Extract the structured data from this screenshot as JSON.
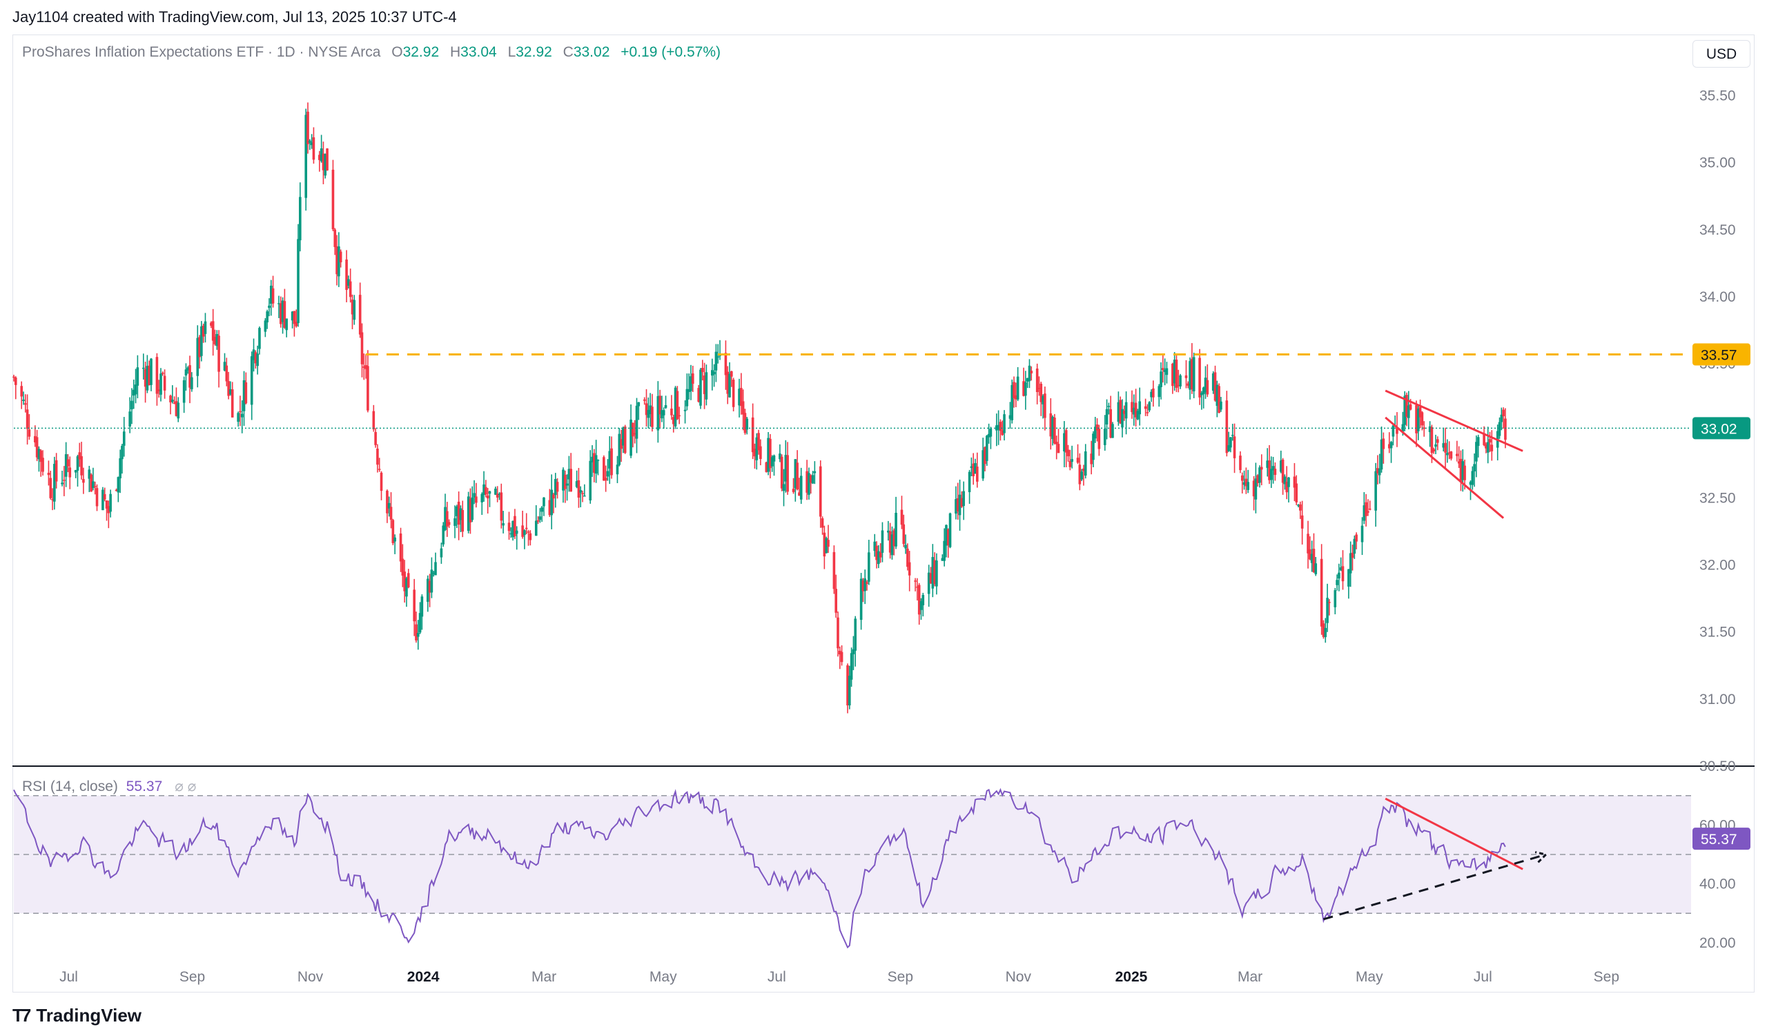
{
  "header": {
    "attribution": "Jay1104 created with TradingView.com, Jul 13, 2025 10:37 UTC-4"
  },
  "legend": {
    "symbol_desc": "ProShares Inflation Expectations ETF · 1D · NYSE Arca",
    "o_label": "O",
    "o_value": "32.92",
    "h_label": "H",
    "h_value": "33.04",
    "l_label": "L",
    "l_value": "32.92",
    "c_label": "C",
    "c_value": "33.02",
    "change": "+0.19 (+0.57%)"
  },
  "currency_button": "USD",
  "rsi_legend": {
    "label": "RSI (14, close)",
    "value": "55.37",
    "icons": "⌀ ⌀"
  },
  "footer": {
    "brand": "TradingView",
    "brand_icon": "tradingview-logo-icon"
  },
  "colors": {
    "up": "#089981",
    "down": "#f23645",
    "resistance": "#f9b400",
    "rsi_line": "#7e57c2",
    "rsi_band": "#ede7f6",
    "trendline_red": "#f23645",
    "divergence": "#131722"
  },
  "chart_data": [
    {
      "type": "candlestick",
      "name": "price",
      "ylim": [
        30.5,
        35.75
      ],
      "y_ticks": [
        "35.50",
        "35.00",
        "34.50",
        "34.00",
        "33.50",
        "33.00",
        "32.50",
        "32.00",
        "31.50",
        "31.00",
        "30.50"
      ],
      "x_ticks": [
        "Jul",
        "Sep",
        "Nov",
        "2024",
        "Mar",
        "May",
        "Jul",
        "Sep",
        "Nov",
        "2025",
        "Mar",
        "May",
        "Jul",
        "Sep"
      ],
      "x_range": [
        "2023-06-01",
        "2025-10-15"
      ],
      "price_path": [
        [
          "2023-06-01",
          33.4
        ],
        [
          "2023-06-20",
          32.6
        ],
        [
          "2023-07-05",
          32.8
        ],
        [
          "2023-07-20",
          32.4
        ],
        [
          "2023-08-05",
          33.5
        ],
        [
          "2023-08-25",
          33.2
        ],
        [
          "2023-09-10",
          33.8
        ],
        [
          "2023-09-25",
          33.1
        ],
        [
          "2023-10-10",
          34.0
        ],
        [
          "2023-10-25",
          33.8
        ],
        [
          "2023-10-28",
          35.3
        ],
        [
          "2023-11-10",
          35.0
        ],
        [
          "2023-11-15",
          34.3
        ],
        [
          "2023-11-25",
          33.8
        ],
        [
          "2023-12-10",
          32.5
        ],
        [
          "2023-12-25",
          31.5
        ],
        [
          "2024-01-10",
          32.3
        ],
        [
          "2024-02-01",
          32.5
        ],
        [
          "2024-02-20",
          32.2
        ],
        [
          "2024-03-10",
          32.6
        ],
        [
          "2024-04-01",
          32.7
        ],
        [
          "2024-04-20",
          33.1
        ],
        [
          "2024-05-10",
          33.2
        ],
        [
          "2024-06-01",
          33.5
        ],
        [
          "2024-06-15",
          33.0
        ],
        [
          "2024-07-01",
          32.7
        ],
        [
          "2024-07-20",
          32.6
        ],
        [
          "2024-08-05",
          31.0
        ],
        [
          "2024-08-12",
          31.9
        ],
        [
          "2024-09-01",
          32.3
        ],
        [
          "2024-09-12",
          31.7
        ],
        [
          "2024-10-01",
          32.4
        ],
        [
          "2024-10-20",
          33.0
        ],
        [
          "2024-11-05",
          33.4
        ],
        [
          "2024-11-20",
          33.0
        ],
        [
          "2024-12-01",
          32.7
        ],
        [
          "2024-12-20",
          33.1
        ],
        [
          "2025-01-10",
          33.3
        ],
        [
          "2025-01-25",
          33.5
        ],
        [
          "2025-02-10",
          33.3
        ],
        [
          "2025-02-25",
          32.6
        ],
        [
          "2025-03-15",
          32.7
        ],
        [
          "2025-03-28",
          32.4
        ],
        [
          "2025-04-08",
          31.6
        ],
        [
          "2025-04-25",
          32.2
        ],
        [
          "2025-05-05",
          32.7
        ],
        [
          "2025-05-20",
          33.2
        ],
        [
          "2025-06-05",
          32.9
        ],
        [
          "2025-06-20",
          32.7
        ],
        [
          "2025-07-01",
          32.9
        ],
        [
          "2025-07-11",
          33.02
        ]
      ],
      "last_close": 33.02,
      "annotations": {
        "resistance_level": 33.57,
        "resistance_label": "33.57",
        "last_price_label": "33.02",
        "falling_wedge": {
          "upper": [
            [
              "2025-05-10",
              33.3
            ],
            [
              "2025-07-20",
              32.85
            ]
          ],
          "lower": [
            [
              "2025-05-10",
              33.1
            ],
            [
              "2025-07-10",
              32.35
            ]
          ]
        }
      }
    },
    {
      "type": "line",
      "name": "RSI (14, close)",
      "ylim": [
        12,
        73
      ],
      "y_ticks": [
        "60.00",
        "40.00",
        "20.00"
      ],
      "bands": {
        "upper": 70,
        "middle": 50,
        "lower": 30
      },
      "last_value": 55.37,
      "last_value_label": "55.37",
      "rsi_path": [
        [
          "2023-06-01",
          70
        ],
        [
          "2023-06-20",
          45
        ],
        [
          "2023-07-05",
          55
        ],
        [
          "2023-07-20",
          42
        ],
        [
          "2023-08-05",
          60
        ],
        [
          "2023-08-25",
          50
        ],
        [
          "2023-09-10",
          62
        ],
        [
          "2023-09-25",
          44
        ],
        [
          "2023-10-10",
          63
        ],
        [
          "2023-10-25",
          52
        ],
        [
          "2023-10-28",
          72
        ],
        [
          "2023-11-10",
          60
        ],
        [
          "2023-11-15",
          45
        ],
        [
          "2023-11-25",
          40
        ],
        [
          "2023-12-10",
          30
        ],
        [
          "2023-12-25",
          22
        ],
        [
          "2024-01-10",
          56
        ],
        [
          "2024-02-01",
          58
        ],
        [
          "2024-02-20",
          45
        ],
        [
          "2024-03-10",
          60
        ],
        [
          "2024-04-01",
          56
        ],
        [
          "2024-04-20",
          65
        ],
        [
          "2024-05-10",
          70
        ],
        [
          "2024-06-01",
          66
        ],
        [
          "2024-06-15",
          46
        ],
        [
          "2024-07-01",
          40
        ],
        [
          "2024-07-20",
          44
        ],
        [
          "2024-08-05",
          20
        ],
        [
          "2024-08-12",
          42
        ],
        [
          "2024-09-01",
          60
        ],
        [
          "2024-09-12",
          34
        ],
        [
          "2024-10-01",
          62
        ],
        [
          "2024-10-20",
          72
        ],
        [
          "2024-11-05",
          68
        ],
        [
          "2024-11-20",
          50
        ],
        [
          "2024-12-01",
          42
        ],
        [
          "2024-12-20",
          58
        ],
        [
          "2025-01-10",
          55
        ],
        [
          "2025-01-25",
          62
        ],
        [
          "2025-02-10",
          52
        ],
        [
          "2025-02-25",
          30
        ],
        [
          "2025-03-15",
          44
        ],
        [
          "2025-03-28",
          48
        ],
        [
          "2025-04-08",
          28
        ],
        [
          "2025-04-25",
          48
        ],
        [
          "2025-05-05",
          57
        ],
        [
          "2025-05-10",
          69
        ],
        [
          "2025-05-20",
          62
        ],
        [
          "2025-06-05",
          52
        ],
        [
          "2025-06-20",
          44
        ],
        [
          "2025-07-01",
          48
        ],
        [
          "2025-07-11",
          55.37
        ]
      ],
      "annotations": {
        "falling_trendline": [
          [
            "2025-05-10",
            69
          ],
          [
            "2025-07-20",
            45
          ]
        ],
        "rising_divergence": [
          [
            "2025-04-08",
            28
          ],
          [
            "2025-08-01",
            50
          ]
        ]
      }
    }
  ]
}
